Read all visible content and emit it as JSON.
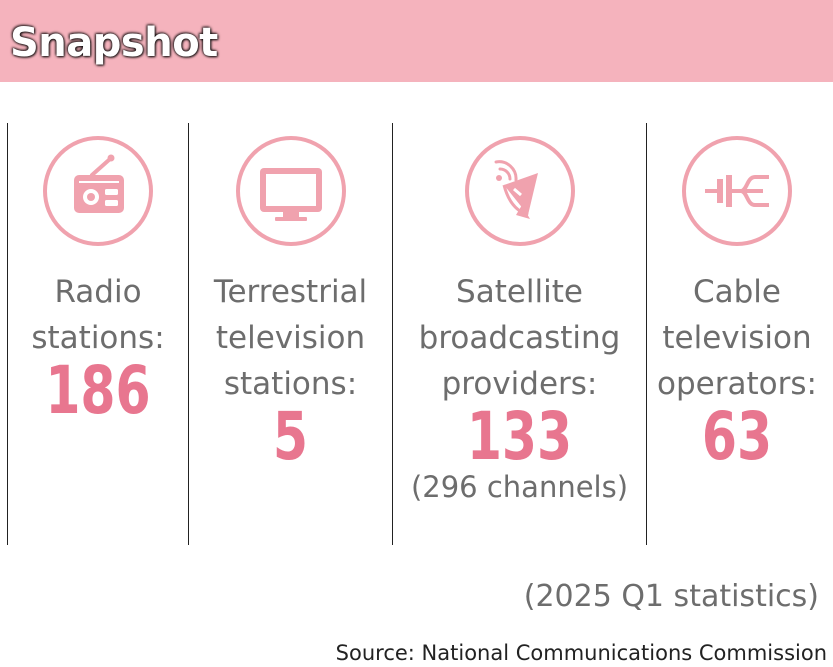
{
  "header": {
    "title": "Snapshot"
  },
  "colors": {
    "banner": "#f5b3bd",
    "accent": "#e8768f",
    "icon_ring": "#f0a2ae",
    "text_gray": "#6d6d6d"
  },
  "stats": [
    {
      "icon": "radio-icon",
      "label_lines": [
        "Radio",
        "stations:"
      ],
      "value": "186",
      "sub": ""
    },
    {
      "icon": "television-icon",
      "label_lines": [
        "Terrestrial",
        "television",
        "stations:"
      ],
      "value": "5",
      "sub": ""
    },
    {
      "icon": "satellite-dish-icon",
      "label_lines": [
        "Satellite",
        "broadcasting",
        "providers:"
      ],
      "value": "133",
      "sub": "(296 channels)"
    },
    {
      "icon": "cable-connector-icon",
      "label_lines": [
        "Cable",
        "television",
        "operators:"
      ],
      "value": "63",
      "sub": ""
    }
  ],
  "footer": {
    "note": "(2025 Q1 statistics)",
    "source": "Source: National Communications Commission"
  }
}
